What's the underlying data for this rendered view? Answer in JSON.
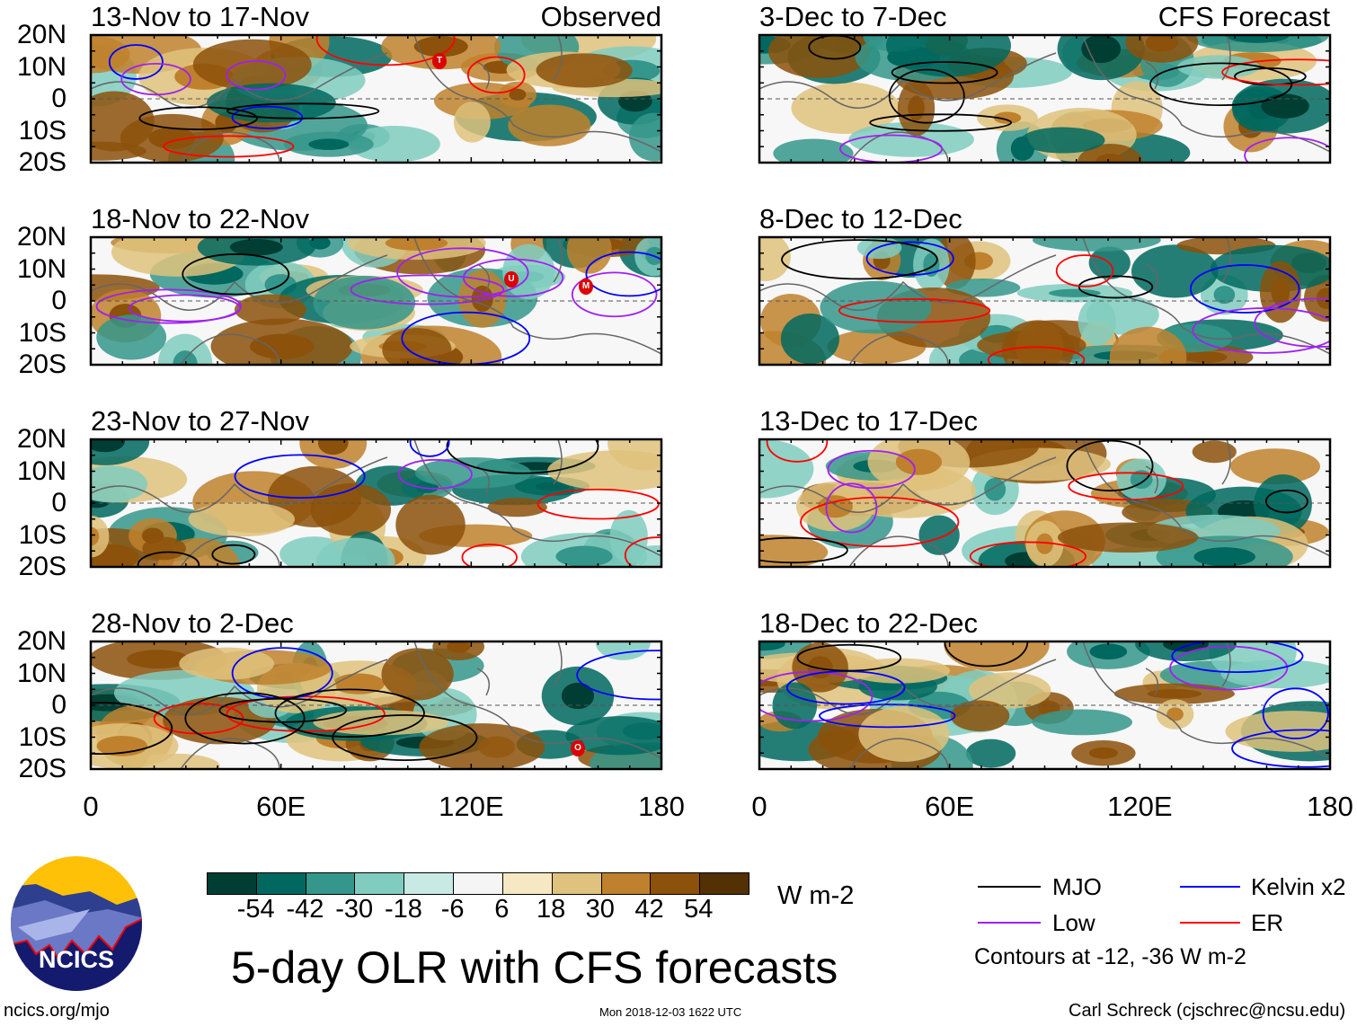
{
  "panels_left": [
    {
      "title": "13-Nov to 17-Nov",
      "tag": "Observed",
      "storms": [
        "T"
      ]
    },
    {
      "title": "18-Nov to 22-Nov",
      "tag": "",
      "storms": [
        "U",
        "M"
      ]
    },
    {
      "title": "23-Nov to 27-Nov",
      "tag": "",
      "storms": []
    },
    {
      "title": "28-Nov to 2-Dec",
      "tag": "",
      "storms": [
        "O"
      ]
    }
  ],
  "panels_right": [
    {
      "title": "3-Dec to 7-Dec",
      "tag": "CFS Forecast"
    },
    {
      "title": "8-Dec to 12-Dec",
      "tag": ""
    },
    {
      "title": "13-Dec to 17-Dec",
      "tag": ""
    },
    {
      "title": "18-Dec to 22-Dec",
      "tag": ""
    }
  ],
  "lat_labels": [
    "20N",
    "10N",
    "0",
    "10S",
    "20S"
  ],
  "lon_labels": [
    "0",
    "60E",
    "120E",
    "180"
  ],
  "colorbar": {
    "labels": [
      "-54",
      "-42",
      "-30",
      "-18",
      "-6",
      "6",
      "18",
      "30",
      "42",
      "54"
    ],
    "colors": [
      "#003d33",
      "#00685f",
      "#35968b",
      "#80cdc0",
      "#c7eae4",
      "#f5f5f5",
      "#f6e8c3",
      "#dfc27d",
      "#bf812d",
      "#8c510a",
      "#543005"
    ],
    "units": "W m-2"
  },
  "title": "5-day OLR with CFS forecasts",
  "legend": {
    "items": [
      {
        "label": "MJO",
        "color": "#000000"
      },
      {
        "label": "Kelvin x2",
        "color": "#0000ff"
      },
      {
        "label": "Low",
        "color": "#a020f0"
      },
      {
        "label": "ER",
        "color": "#ff0000"
      }
    ],
    "note": "Contours at -12, -36 W m-2"
  },
  "logo": {
    "text": "NCICS"
  },
  "footer": {
    "url": "ncics.org/mjo",
    "timestamp": "Mon 2018-12-03 1622 UTC",
    "credit": "Carl Schreck (cjschrec@ncsu.edu)"
  },
  "chart_data": {
    "type": "heatmap",
    "title": "5-day OLR with CFS forecasts",
    "variable": "OLR anomaly",
    "units": "W m-2",
    "lat_range": [
      -20,
      20
    ],
    "lon_range": [
      0,
      180
    ],
    "contour_levels": [
      -12,
      -36
    ],
    "color_levels": [
      -54,
      -42,
      -30,
      -18,
      -6,
      6,
      18,
      30,
      42,
      54
    ]
  }
}
